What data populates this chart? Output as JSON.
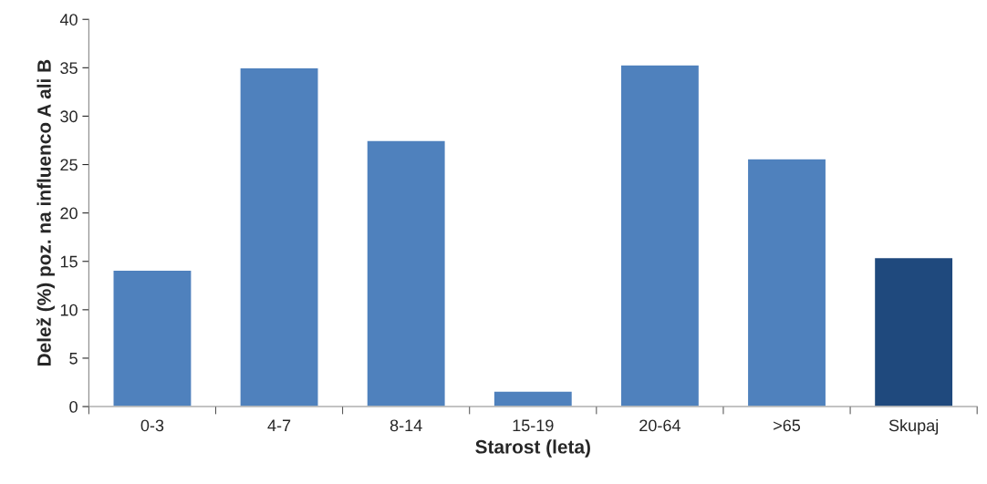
{
  "chart_data": {
    "type": "bar",
    "xlabel": "Starost (leta)",
    "ylabel": "Delež (%) poz. na influenco A ali B",
    "categories": [
      "0-3",
      "4-7",
      "8-14",
      "15-19",
      "20-64",
      ">65",
      "Skupaj"
    ],
    "values": [
      14.1,
      35.0,
      27.5,
      1.6,
      35.3,
      25.6,
      15.4
    ],
    "colors": [
      "#4f81bd",
      "#4f81bd",
      "#4f81bd",
      "#4f81bd",
      "#4f81bd",
      "#4f81bd",
      "#1f497d"
    ],
    "ylim": [
      0,
      40
    ],
    "yticks": [
      0,
      5,
      10,
      15,
      20,
      25,
      30,
      35,
      40
    ],
    "grid": false,
    "legend": false
  }
}
